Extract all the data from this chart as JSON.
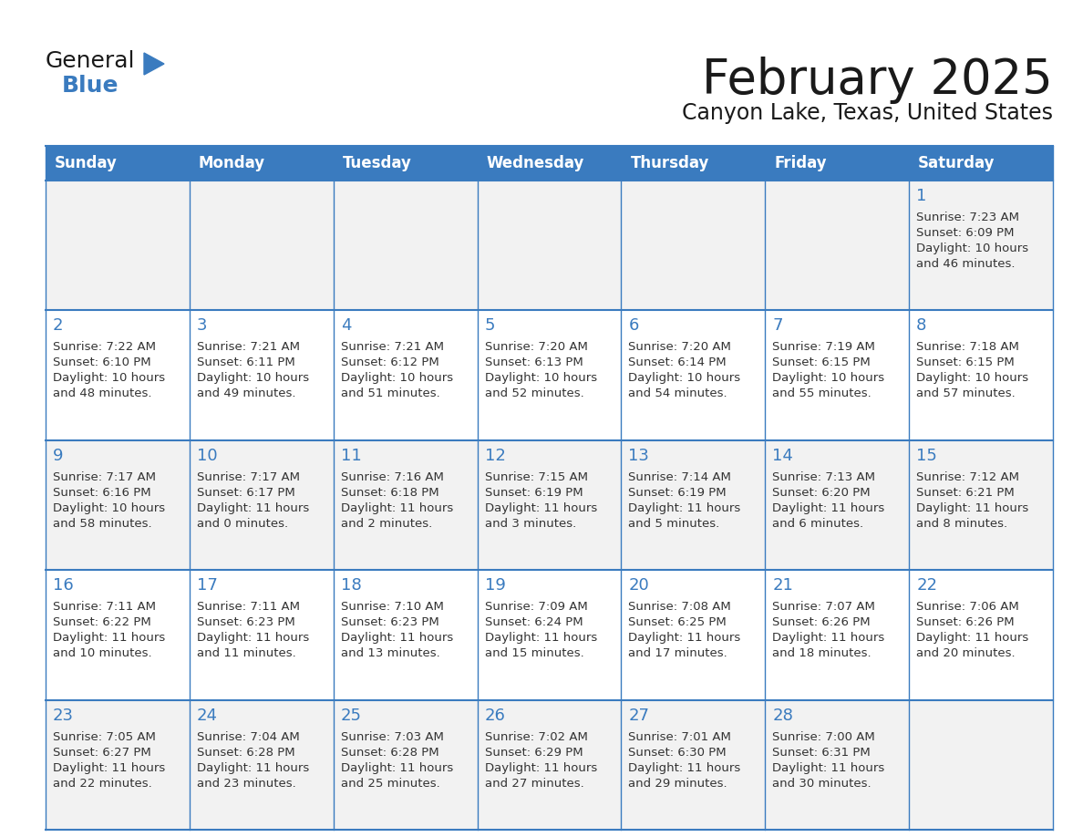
{
  "title": "February 2025",
  "subtitle": "Canyon Lake, Texas, United States",
  "header_bg": "#3a7bbf",
  "header_text_color": "#FFFFFF",
  "row_bg_odd": "#f2f2f2",
  "row_bg_even": "#ffffff",
  "border_color": "#3a7bbf",
  "day_headers": [
    "Sunday",
    "Monday",
    "Tuesday",
    "Wednesday",
    "Thursday",
    "Friday",
    "Saturday"
  ],
  "title_color": "#1a1a1a",
  "subtitle_color": "#1a1a1a",
  "day_number_color": "#3a7bbf",
  "cell_text_color": "#333333",
  "logo_general_color": "#1a1a1a",
  "logo_blue_color": "#3a7bbf",
  "weeks": [
    [
      {
        "day": null,
        "info": ""
      },
      {
        "day": null,
        "info": ""
      },
      {
        "day": null,
        "info": ""
      },
      {
        "day": null,
        "info": ""
      },
      {
        "day": null,
        "info": ""
      },
      {
        "day": null,
        "info": ""
      },
      {
        "day": 1,
        "info": "Sunrise: 7:23 AM\nSunset: 6:09 PM\nDaylight: 10 hours\nand 46 minutes."
      }
    ],
    [
      {
        "day": 2,
        "info": "Sunrise: 7:22 AM\nSunset: 6:10 PM\nDaylight: 10 hours\nand 48 minutes."
      },
      {
        "day": 3,
        "info": "Sunrise: 7:21 AM\nSunset: 6:11 PM\nDaylight: 10 hours\nand 49 minutes."
      },
      {
        "day": 4,
        "info": "Sunrise: 7:21 AM\nSunset: 6:12 PM\nDaylight: 10 hours\nand 51 minutes."
      },
      {
        "day": 5,
        "info": "Sunrise: 7:20 AM\nSunset: 6:13 PM\nDaylight: 10 hours\nand 52 minutes."
      },
      {
        "day": 6,
        "info": "Sunrise: 7:20 AM\nSunset: 6:14 PM\nDaylight: 10 hours\nand 54 minutes."
      },
      {
        "day": 7,
        "info": "Sunrise: 7:19 AM\nSunset: 6:15 PM\nDaylight: 10 hours\nand 55 minutes."
      },
      {
        "day": 8,
        "info": "Sunrise: 7:18 AM\nSunset: 6:15 PM\nDaylight: 10 hours\nand 57 minutes."
      }
    ],
    [
      {
        "day": 9,
        "info": "Sunrise: 7:17 AM\nSunset: 6:16 PM\nDaylight: 10 hours\nand 58 minutes."
      },
      {
        "day": 10,
        "info": "Sunrise: 7:17 AM\nSunset: 6:17 PM\nDaylight: 11 hours\nand 0 minutes."
      },
      {
        "day": 11,
        "info": "Sunrise: 7:16 AM\nSunset: 6:18 PM\nDaylight: 11 hours\nand 2 minutes."
      },
      {
        "day": 12,
        "info": "Sunrise: 7:15 AM\nSunset: 6:19 PM\nDaylight: 11 hours\nand 3 minutes."
      },
      {
        "day": 13,
        "info": "Sunrise: 7:14 AM\nSunset: 6:19 PM\nDaylight: 11 hours\nand 5 minutes."
      },
      {
        "day": 14,
        "info": "Sunrise: 7:13 AM\nSunset: 6:20 PM\nDaylight: 11 hours\nand 6 minutes."
      },
      {
        "day": 15,
        "info": "Sunrise: 7:12 AM\nSunset: 6:21 PM\nDaylight: 11 hours\nand 8 minutes."
      }
    ],
    [
      {
        "day": 16,
        "info": "Sunrise: 7:11 AM\nSunset: 6:22 PM\nDaylight: 11 hours\nand 10 minutes."
      },
      {
        "day": 17,
        "info": "Sunrise: 7:11 AM\nSunset: 6:23 PM\nDaylight: 11 hours\nand 11 minutes."
      },
      {
        "day": 18,
        "info": "Sunrise: 7:10 AM\nSunset: 6:23 PM\nDaylight: 11 hours\nand 13 minutes."
      },
      {
        "day": 19,
        "info": "Sunrise: 7:09 AM\nSunset: 6:24 PM\nDaylight: 11 hours\nand 15 minutes."
      },
      {
        "day": 20,
        "info": "Sunrise: 7:08 AM\nSunset: 6:25 PM\nDaylight: 11 hours\nand 17 minutes."
      },
      {
        "day": 21,
        "info": "Sunrise: 7:07 AM\nSunset: 6:26 PM\nDaylight: 11 hours\nand 18 minutes."
      },
      {
        "day": 22,
        "info": "Sunrise: 7:06 AM\nSunset: 6:26 PM\nDaylight: 11 hours\nand 20 minutes."
      }
    ],
    [
      {
        "day": 23,
        "info": "Sunrise: 7:05 AM\nSunset: 6:27 PM\nDaylight: 11 hours\nand 22 minutes."
      },
      {
        "day": 24,
        "info": "Sunrise: 7:04 AM\nSunset: 6:28 PM\nDaylight: 11 hours\nand 23 minutes."
      },
      {
        "day": 25,
        "info": "Sunrise: 7:03 AM\nSunset: 6:28 PM\nDaylight: 11 hours\nand 25 minutes."
      },
      {
        "day": 26,
        "info": "Sunrise: 7:02 AM\nSunset: 6:29 PM\nDaylight: 11 hours\nand 27 minutes."
      },
      {
        "day": 27,
        "info": "Sunrise: 7:01 AM\nSunset: 6:30 PM\nDaylight: 11 hours\nand 29 minutes."
      },
      {
        "day": 28,
        "info": "Sunrise: 7:00 AM\nSunset: 6:31 PM\nDaylight: 11 hours\nand 30 minutes."
      },
      {
        "day": null,
        "info": ""
      }
    ]
  ]
}
